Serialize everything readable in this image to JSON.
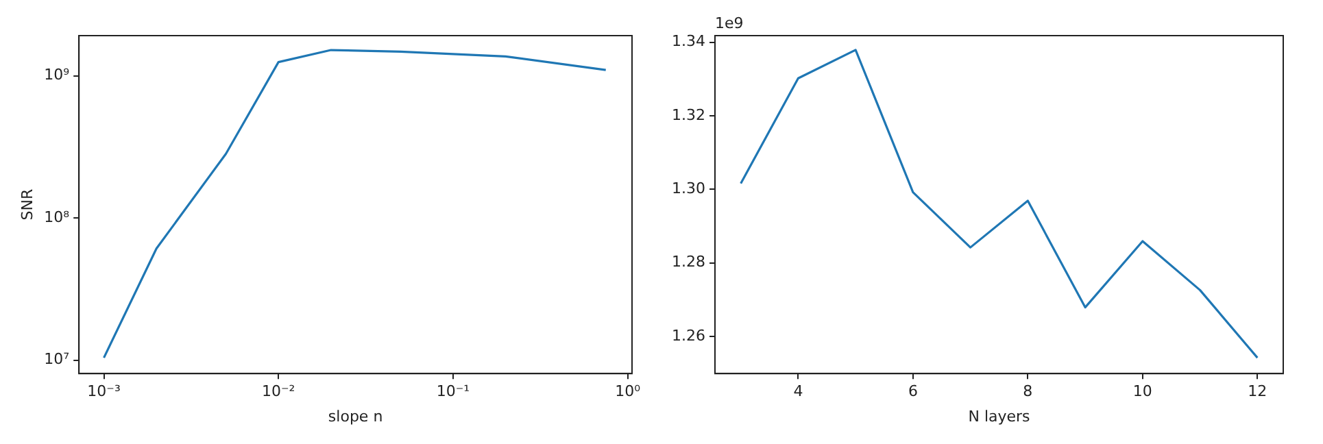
{
  "chart_data": [
    {
      "type": "line",
      "xlabel": "slope n",
      "ylabel": "SNR",
      "log": "xy",
      "xlim": [
        0.00072,
        1.06
      ],
      "ylim": [
        8050000,
        1920000000
      ],
      "xticks": [
        {
          "value": 0.001,
          "label": "10⁻³"
        },
        {
          "value": 0.01,
          "label": "10⁻²"
        },
        {
          "value": 0.1,
          "label": "10⁻¹"
        },
        {
          "value": 1,
          "label": "10⁰"
        }
      ],
      "yticks": [
        {
          "value": 10000000,
          "label": "10⁷"
        },
        {
          "value": 100000000,
          "label": "10⁸"
        },
        {
          "value": 1000000000,
          "label": "10⁹"
        }
      ],
      "series": [
        {
          "color": "#1f77b4",
          "x": [
            0.001,
            0.002,
            0.005,
            0.01,
            0.02,
            0.05,
            0.2,
            0.75
          ],
          "values": [
            10400000,
            61000000,
            283000000,
            1250000000,
            1520000000,
            1480000000,
            1370000000,
            1100000000
          ]
        }
      ]
    },
    {
      "type": "line",
      "xlabel": "N layers",
      "xlim": [
        2.55,
        12.45
      ],
      "ylim": [
        1.2499,
        1.3418
      ],
      "xticks": [
        4,
        6,
        8,
        10,
        12
      ],
      "yticks": [
        1.26,
        1.28,
        {
          "value": 1.3,
          "label": "1.30"
        },
        1.32,
        1.34
      ],
      "annotations": [
        "1e9"
      ],
      "series": [
        {
          "color": "#1f77b4",
          "x": [
            3,
            4,
            5,
            6,
            7,
            8,
            9,
            10,
            11,
            12
          ],
          "values": [
            1.3016,
            1.3302,
            1.3379,
            1.2992,
            1.2842,
            1.2969,
            1.2679,
            1.2859,
            1.2726,
            1.2542
          ]
        }
      ]
    }
  ]
}
